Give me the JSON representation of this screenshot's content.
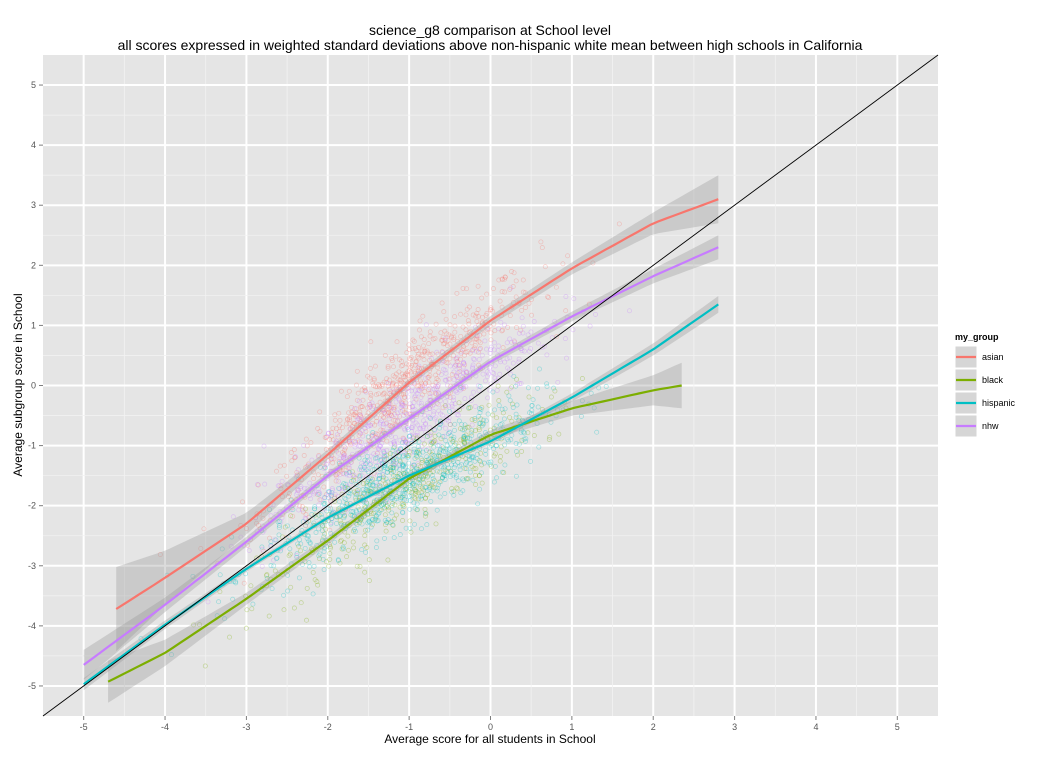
{
  "chart_data": {
    "type": "scatter",
    "title": "science_g8 comparison at School level",
    "subtitle": "all scores expressed in weighted standard deviations above non-hispanic white mean between high schools in California",
    "xlabel": "Average score for all students in School",
    "ylabel": "Average subgroup score in School",
    "xlim": [
      -5.5,
      5.5
    ],
    "ylim": [
      -5.5,
      5.5
    ],
    "x_ticks": [
      -5,
      -4,
      -3,
      -2,
      -1,
      0,
      1,
      2,
      3,
      4,
      5
    ],
    "y_ticks": [
      -5,
      -4,
      -3,
      -2,
      -1,
      0,
      1,
      2,
      3,
      4,
      5
    ],
    "grid": true,
    "reference_line": "y = x",
    "legend": {
      "title": "my_group",
      "position": "right",
      "entries": [
        "asian",
        "black",
        "hispanic",
        "nhw"
      ]
    },
    "series": [
      {
        "name": "asian",
        "color": "#F8766D",
        "smooth_x": [
          -4.6,
          -4.0,
          -3.0,
          -2.0,
          -1.0,
          0.0,
          1.0,
          2.0,
          2.8
        ],
        "smooth_y": [
          -3.72,
          -3.2,
          -2.3,
          -1.15,
          0.05,
          1.08,
          1.95,
          2.7,
          3.1
        ],
        "ci_halfwidth": [
          0.7,
          0.45,
          0.18,
          0.08,
          0.06,
          0.08,
          0.1,
          0.18,
          0.4
        ]
      },
      {
        "name": "black",
        "color": "#7CAE00",
        "smooth_x": [
          -4.7,
          -4.0,
          -3.0,
          -2.0,
          -1.0,
          0.0,
          1.0,
          2.0,
          2.35
        ],
        "smooth_y": [
          -4.93,
          -4.45,
          -3.55,
          -2.58,
          -1.55,
          -0.82,
          -0.38,
          -0.08,
          0.0
        ],
        "ci_halfwidth": [
          0.35,
          0.22,
          0.1,
          0.07,
          0.06,
          0.08,
          0.12,
          0.25,
          0.38
        ]
      },
      {
        "name": "hispanic",
        "color": "#00BFC4",
        "smooth_x": [
          -5.0,
          -4.0,
          -3.0,
          -2.0,
          -1.0,
          0.0,
          1.0,
          2.0,
          2.8
        ],
        "smooth_y": [
          -4.97,
          -3.98,
          -3.05,
          -2.2,
          -1.5,
          -0.93,
          -0.2,
          0.6,
          1.35
        ],
        "ci_halfwidth": [
          0.1,
          0.07,
          0.05,
          0.04,
          0.04,
          0.05,
          0.07,
          0.1,
          0.14
        ]
      },
      {
        "name": "nhw",
        "color": "#C77CFF",
        "smooth_x": [
          -5.0,
          -4.0,
          -3.0,
          -2.0,
          -1.0,
          0.0,
          1.0,
          2.0,
          2.8
        ],
        "smooth_y": [
          -4.65,
          -3.65,
          -2.6,
          -1.5,
          -0.55,
          0.4,
          1.15,
          1.82,
          2.3
        ],
        "ci_halfwidth": [
          0.25,
          0.12,
          0.08,
          0.06,
          0.05,
          0.06,
          0.08,
          0.12,
          0.2
        ]
      }
    ]
  }
}
